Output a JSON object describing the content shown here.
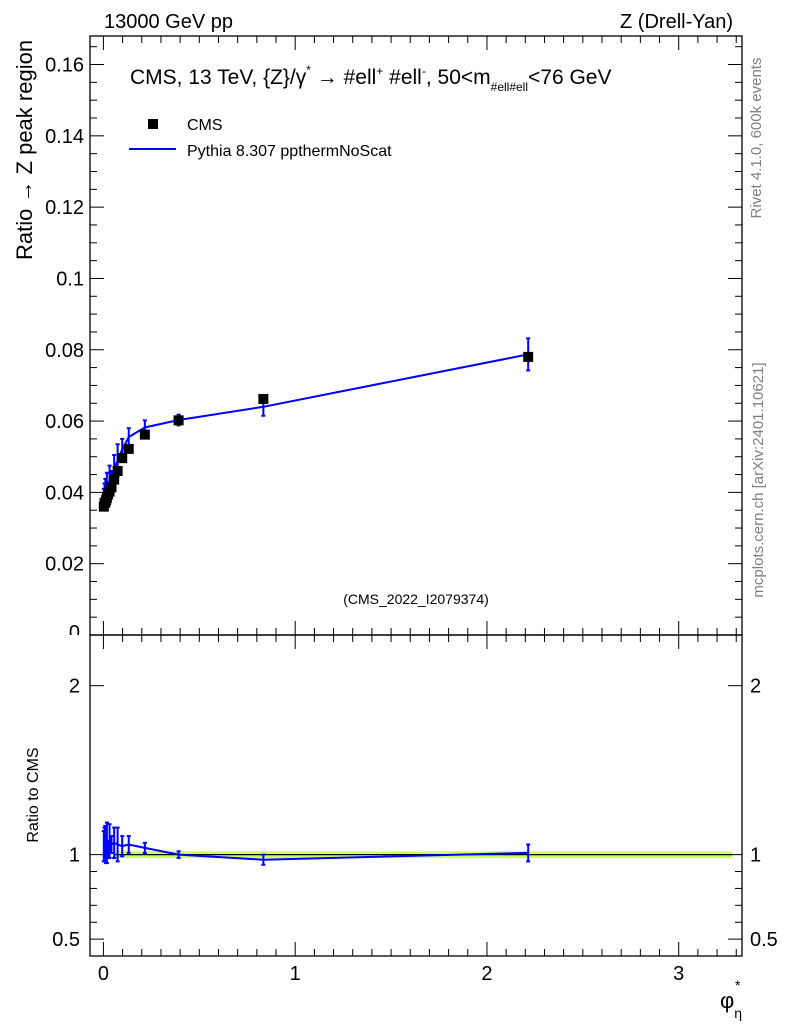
{
  "header": {
    "energy_label": "13000 GeV pp",
    "process_label": "Z (Drell-Yan)"
  },
  "side_labels": {
    "rivet": "Rivet 4.1.0,  600k events",
    "mcplots": "mcplots.cern.ch [arXiv:2401.10621]"
  },
  "chart_data": {
    "type": "scatter",
    "title": "CMS, 13 TeV, {Z}/γ* → #ell⁺ #ell⁻, 50<m#ell#ell<76 GeV",
    "title_parts": {
      "main": "CMS, 13 TeV, {Z}/γ",
      "arrow": "→",
      "leptons": "#ell",
      "lepton_plus": "+",
      "lepton_minus": "-",
      "mass_range": ", 50<m",
      "mass_sub": "#ell#ell",
      "mass_unit": "<76 GeV",
      "star": "*"
    },
    "watermark": "(CMS_2022_I2079374)",
    "xlabel": "φ",
    "xlabel_sub": "η",
    "xlabel_sup": "*",
    "ylabel": "Ratio → Z peak region",
    "ratio_ylabel": "Ratio to CMS",
    "xlim": [
      -0.07,
      3.33
    ],
    "ylim": [
      0,
      0.168
    ],
    "ratio_ylim": [
      0.4,
      2.3
    ],
    "x_ticks": [
      0,
      1,
      2,
      3
    ],
    "y_ticks": [
      0.02,
      0.04,
      0.06,
      0.08,
      0.1,
      0.12,
      0.14,
      0.16
    ],
    "y_tick_labels": [
      "0.02",
      "0.04",
      "0.06",
      "0.08",
      "0.1",
      "0.12",
      "0.14",
      "0.16"
    ],
    "y_zero_label": "0",
    "ratio_ticks": [
      0.5,
      1,
      2
    ],
    "ratio_tick_labels": [
      "0.5",
      "1",
      "2"
    ],
    "legend": [
      {
        "name": "CMS",
        "marker": "square",
        "color": "#000000"
      },
      {
        "name": "Pythia 8.307 ppthermNoScat",
        "marker": "line",
        "color": "#0000ff"
      }
    ],
    "series": [
      {
        "name": "CMS",
        "x": [
          0.002,
          0.006,
          0.01,
          0.014,
          0.018,
          0.024,
          0.032,
          0.042,
          0.056,
          0.074,
          0.098,
          0.132,
          0.216,
          0.392,
          0.834,
          2.215
        ],
        "y": [
          0.036,
          0.037,
          0.0372,
          0.0378,
          0.0384,
          0.0394,
          0.0402,
          0.0414,
          0.0436,
          0.046,
          0.0496,
          0.0522,
          0.0562,
          0.0602,
          0.0662,
          0.078
        ]
      },
      {
        "name": "Pythia 8.307 ppthermNoScat",
        "x": [
          0.002,
          0.006,
          0.01,
          0.014,
          0.018,
          0.024,
          0.032,
          0.042,
          0.056,
          0.074,
          0.098,
          0.132,
          0.216,
          0.392,
          0.834,
          2.215
        ],
        "y": [
          0.038,
          0.0395,
          0.0398,
          0.0382,
          0.041,
          0.0408,
          0.0435,
          0.044,
          0.0465,
          0.049,
          0.052,
          0.0555,
          0.0582,
          0.0603,
          0.064,
          0.0787
        ],
        "yerr": [
          0.003,
          0.003,
          0.004,
          0.002,
          0.0045,
          0.002,
          0.004,
          0.002,
          0.004,
          0.0045,
          0.003,
          0.0025,
          0.002,
          0.0015,
          0.0025,
          0.0045
        ]
      }
    ],
    "ratio": {
      "band_halfwidth": 0.02,
      "values": [
        1.05,
        1.08,
        1.07,
        1.01,
        1.07,
        1.03,
        1.08,
        1.06,
        1.07,
        1.06,
        1.05,
        1.06,
        1.04,
        1.0,
        0.97,
        1.01
      ],
      "errors": [
        0.09,
        0.08,
        0.1,
        0.06,
        0.12,
        0.05,
        0.1,
        0.05,
        0.09,
        0.1,
        0.06,
        0.05,
        0.03,
        0.02,
        0.03,
        0.05
      ]
    }
  }
}
